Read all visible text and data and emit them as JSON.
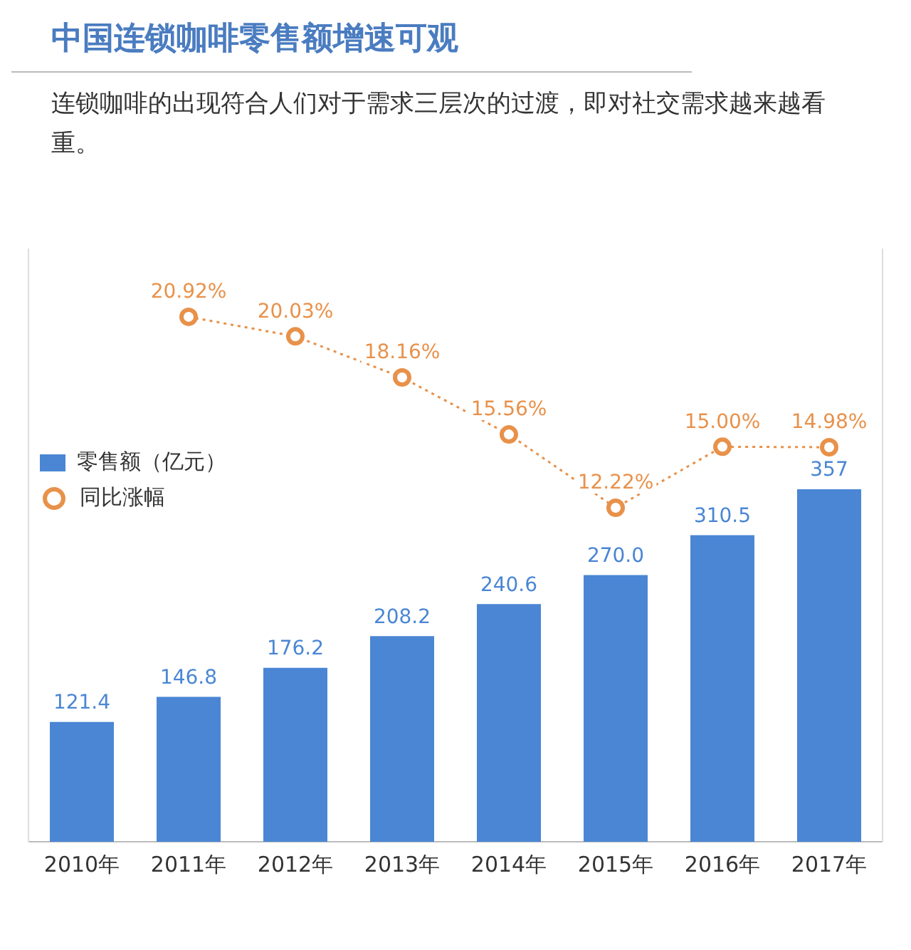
{
  "chart_data": {
    "type": "bar",
    "title": "中国连锁咖啡零售额增速可观",
    "subtitle": "连锁咖啡的出现符合人们对于需求三层次的过渡，即对社交需求越来越看重。",
    "categories": [
      "2010年",
      "2011年",
      "2012年",
      "2013年",
      "2014年",
      "2015年",
      "2016年",
      "2017年"
    ],
    "series": [
      {
        "name": "零售额（亿元）",
        "color": "#4a86d4",
        "values": [
          121.4,
          146.8,
          176.2,
          208.2,
          240.6,
          270.0,
          310.5,
          357
        ],
        "value_labels": [
          "121.4",
          "146.8",
          "176.2",
          "208.2",
          "240.6",
          "270.0",
          "310.5",
          "357"
        ]
      },
      {
        "name": "同比涨幅",
        "type": "line",
        "axis": "y2",
        "color": "#e8914a",
        "marker": "circle",
        "line_style": "dotted",
        "values": [
          null,
          20.92,
          20.03,
          18.16,
          15.56,
          12.22,
          15.0,
          14.98
        ],
        "value_labels": [
          null,
          "20.92%",
          "20.03%",
          "18.16%",
          "15.56%",
          "12.22%",
          "15.00%",
          "14.98%"
        ]
      }
    ],
    "ylim": [
      0,
      600
    ],
    "y2lim": [
      -3,
      24
    ],
    "tick_labels": "x",
    "grid": false,
    "legend": "top left"
  }
}
